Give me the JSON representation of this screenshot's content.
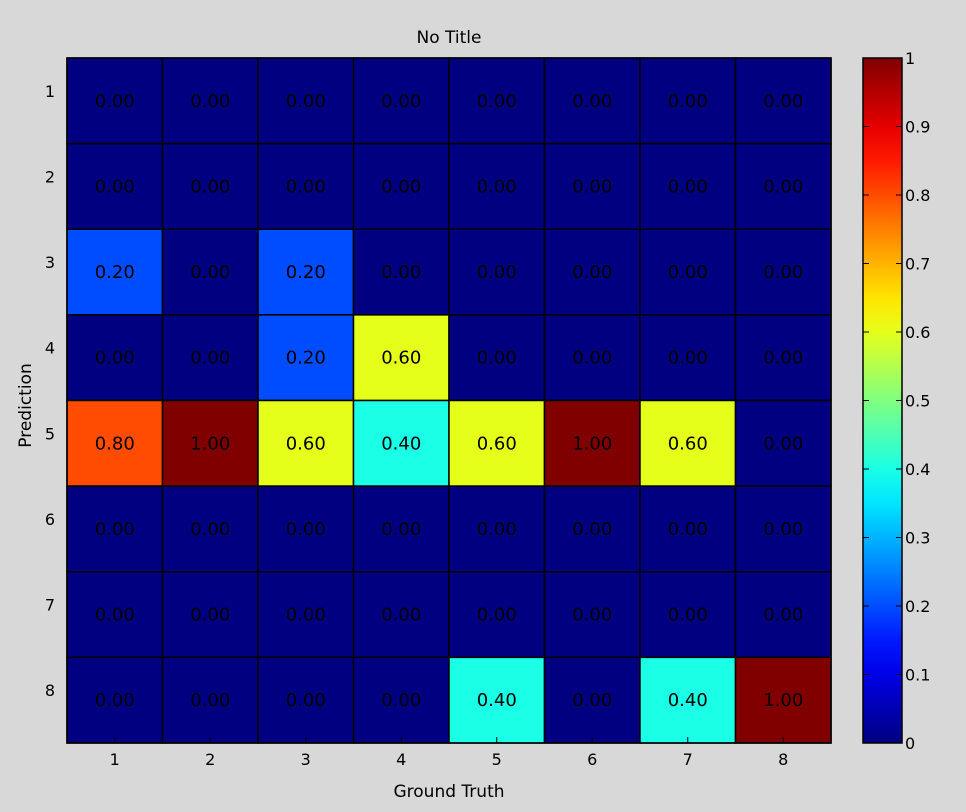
{
  "chart_data": {
    "type": "heatmap",
    "title": "No Title",
    "xlabel": "Ground Truth",
    "ylabel": "Prediction",
    "x_categories": [
      "1",
      "2",
      "3",
      "4",
      "5",
      "6",
      "7",
      "8"
    ],
    "y_categories": [
      "1",
      "2",
      "3",
      "4",
      "5",
      "6",
      "7",
      "8"
    ],
    "values": [
      [
        0.0,
        0.0,
        0.0,
        0.0,
        0.0,
        0.0,
        0.0,
        0.0
      ],
      [
        0.0,
        0.0,
        0.0,
        0.0,
        0.0,
        0.0,
        0.0,
        0.0
      ],
      [
        0.2,
        0.0,
        0.2,
        0.0,
        0.0,
        0.0,
        0.0,
        0.0
      ],
      [
        0.0,
        0.0,
        0.2,
        0.6,
        0.0,
        0.0,
        0.0,
        0.0
      ],
      [
        0.8,
        1.0,
        0.6,
        0.4,
        0.6,
        1.0,
        0.6,
        0.0
      ],
      [
        0.0,
        0.0,
        0.0,
        0.0,
        0.0,
        0.0,
        0.0,
        0.0
      ],
      [
        0.0,
        0.0,
        0.0,
        0.0,
        0.0,
        0.0,
        0.0,
        0.0
      ],
      [
        0.0,
        0.0,
        0.0,
        0.0,
        0.4,
        0.0,
        0.4,
        1.0
      ]
    ],
    "value_format": "0.00",
    "colormap": "jet",
    "colorbar": {
      "range": [
        0,
        1
      ],
      "ticks": [
        0,
        0.1,
        0.2,
        0.3,
        0.4,
        0.5,
        0.6,
        0.7,
        0.8,
        0.9,
        1
      ],
      "tick_labels": [
        "0",
        "0.1",
        "0.2",
        "0.3",
        "0.4",
        "0.5",
        "0.6",
        "0.7",
        "0.8",
        "0.9",
        "1"
      ]
    },
    "background_color": "#d8d8d8",
    "grid_line_color": "#000000"
  }
}
